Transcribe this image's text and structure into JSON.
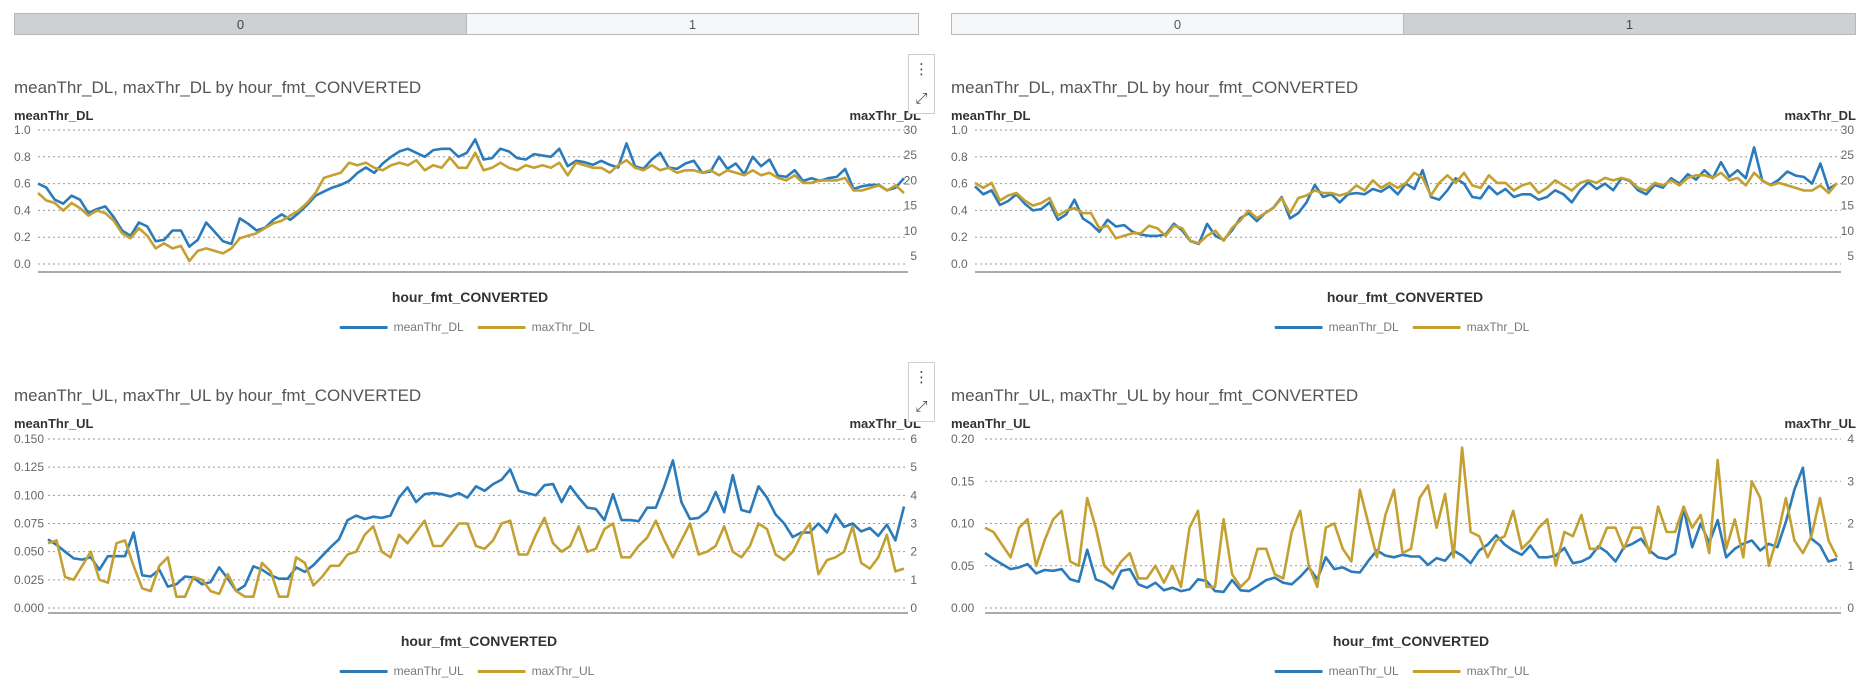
{
  "colors": {
    "mean": "#2b7bba",
    "max": "#c4a032"
  },
  "icons": {
    "menu": "more-vertical-icon",
    "expand": "expand-icon"
  },
  "panels": [
    {
      "tabs": [
        {
          "label": "0",
          "active": true
        },
        {
          "label": "1",
          "active": false
        }
      ]
    },
    {
      "tabs": [
        {
          "label": "0",
          "active": false
        },
        {
          "label": "1",
          "active": true
        }
      ]
    }
  ],
  "chart_data": [
    {
      "type": "line",
      "title": "meanThr_DL, maxThr_DL by hour_fmt_CONVERTED",
      "xlabel": "hour_fmt_CONVERTED",
      "ylabel": "meanThr_DL",
      "y2label": "maxThr_DL",
      "ylim": [
        0,
        1.0
      ],
      "yticks": [
        0.0,
        0.2,
        0.4,
        0.6,
        0.8,
        1.0
      ],
      "ytick_labels": [
        "0.0",
        "0.2",
        "0.4",
        "0.6",
        "0.8",
        "1.0"
      ],
      "y2lim": [
        3.4,
        30
      ],
      "y2ticks": [
        5,
        10,
        15,
        20,
        25,
        30
      ],
      "y2tick_labels": [
        "5",
        "10",
        "15",
        "20",
        "25",
        "30"
      ],
      "grid": true,
      "legend_position": "bottom",
      "series": [
        {
          "name": "meanThr_DL",
          "axis": "left",
          "values": [
            0.6,
            0.57,
            0.48,
            0.45,
            0.51,
            0.48,
            0.38,
            0.41,
            0.43,
            0.35,
            0.25,
            0.21,
            0.31,
            0.28,
            0.17,
            0.18,
            0.25,
            0.25,
            0.13,
            0.18,
            0.31,
            0.24,
            0.17,
            0.15,
            0.34,
            0.3,
            0.25,
            0.27,
            0.33,
            0.37,
            0.33,
            0.38,
            0.44,
            0.51,
            0.54,
            0.57,
            0.59,
            0.62,
            0.68,
            0.72,
            0.68,
            0.75,
            0.8,
            0.84,
            0.86,
            0.83,
            0.8,
            0.85,
            0.86,
            0.86,
            0.8,
            0.83,
            0.93,
            0.78,
            0.79,
            0.86,
            0.84,
            0.79,
            0.78,
            0.82,
            0.81,
            0.8,
            0.86,
            0.73,
            0.77,
            0.76,
            0.74,
            0.77,
            0.74,
            0.72,
            0.9,
            0.73,
            0.71,
            0.78,
            0.83,
            0.72,
            0.71,
            0.75,
            0.77,
            0.68,
            0.69,
            0.8,
            0.71,
            0.75,
            0.67,
            0.8,
            0.73,
            0.78,
            0.66,
            0.65,
            0.7,
            0.62,
            0.64,
            0.62,
            0.64,
            0.65,
            0.71,
            0.56,
            0.58,
            0.59,
            0.59,
            0.55,
            0.57,
            0.64
          ]
        },
        {
          "name": "maxThr_DL",
          "axis": "right",
          "values": [
            17.5,
            16.0,
            15.5,
            14.0,
            15.5,
            14.5,
            13.0,
            14.0,
            13.5,
            12.0,
            9.5,
            8.5,
            10.5,
            9.0,
            6.5,
            7.5,
            6.5,
            7.0,
            4.0,
            6.0,
            6.5,
            6.0,
            5.5,
            6.5,
            8.5,
            9.0,
            9.5,
            10.5,
            11.5,
            12.0,
            13.0,
            14.0,
            15.5,
            17.5,
            20.5,
            21.0,
            21.5,
            23.5,
            23.0,
            23.5,
            22.5,
            22.0,
            23.0,
            23.5,
            23.0,
            24.0,
            22.0,
            23.0,
            22.5,
            24.5,
            22.5,
            22.5,
            25.5,
            22.0,
            22.5,
            23.5,
            22.5,
            22.0,
            23.0,
            22.5,
            23.0,
            22.5,
            23.5,
            21.0,
            23.5,
            23.0,
            22.5,
            22.5,
            21.5,
            23.0,
            24.0,
            22.5,
            22.0,
            23.0,
            22.0,
            22.5,
            21.5,
            22.0,
            22.0,
            21.5,
            22.0,
            21.0,
            22.0,
            21.5,
            21.0,
            22.0,
            21.0,
            21.5,
            20.5,
            20.0,
            21.0,
            19.5,
            19.5,
            20.0,
            20.0,
            20.0,
            20.5,
            18.0,
            18.0,
            18.5,
            19.0,
            18.0,
            19.0,
            17.5
          ]
        }
      ]
    },
    {
      "type": "line",
      "title": "meanThr_DL, maxThr_DL by hour_fmt_CONVERTED",
      "xlabel": "hour_fmt_CONVERTED",
      "ylabel": "meanThr_DL",
      "y2label": "maxThr_DL",
      "ylim": [
        0,
        1.0
      ],
      "yticks": [
        0.0,
        0.2,
        0.4,
        0.6,
        0.8,
        1.0
      ],
      "ytick_labels": [
        "0.0",
        "0.2",
        "0.4",
        "0.6",
        "0.8",
        "1.0"
      ],
      "y2lim": [
        3.4,
        30
      ],
      "y2ticks": [
        5,
        10,
        15,
        20,
        25,
        30
      ],
      "y2tick_labels": [
        "5",
        "10",
        "15",
        "20",
        "25",
        "30"
      ],
      "grid": true,
      "legend_position": "bottom",
      "series": [
        {
          "name": "meanThr_DL",
          "axis": "left",
          "values": [
            0.58,
            0.52,
            0.55,
            0.44,
            0.47,
            0.52,
            0.45,
            0.4,
            0.41,
            0.46,
            0.33,
            0.37,
            0.48,
            0.34,
            0.3,
            0.24,
            0.33,
            0.28,
            0.29,
            0.24,
            0.22,
            0.21,
            0.21,
            0.22,
            0.3,
            0.25,
            0.17,
            0.15,
            0.3,
            0.21,
            0.18,
            0.25,
            0.34,
            0.38,
            0.32,
            0.38,
            0.42,
            0.5,
            0.34,
            0.38,
            0.46,
            0.59,
            0.5,
            0.52,
            0.46,
            0.52,
            0.53,
            0.52,
            0.56,
            0.54,
            0.58,
            0.52,
            0.6,
            0.56,
            0.7,
            0.5,
            0.48,
            0.55,
            0.64,
            0.6,
            0.5,
            0.49,
            0.58,
            0.52,
            0.56,
            0.5,
            0.52,
            0.52,
            0.48,
            0.5,
            0.55,
            0.52,
            0.46,
            0.55,
            0.61,
            0.56,
            0.6,
            0.55,
            0.64,
            0.62,
            0.55,
            0.52,
            0.59,
            0.57,
            0.64,
            0.6,
            0.67,
            0.63,
            0.7,
            0.64,
            0.76,
            0.65,
            0.7,
            0.64,
            0.87,
            0.62,
            0.59,
            0.63,
            0.69,
            0.66,
            0.65,
            0.6,
            0.75,
            0.56,
            0.6
          ]
        },
        {
          "name": "maxThr_DL",
          "axis": "right",
          "values": [
            19.5,
            18.5,
            19.5,
            16.0,
            17.0,
            17.5,
            16.0,
            15.0,
            15.5,
            16.5,
            13.0,
            14.0,
            14.5,
            13.5,
            13.5,
            10.5,
            11.0,
            8.5,
            9.0,
            9.5,
            9.5,
            11.0,
            10.5,
            9.0,
            11.0,
            10.5,
            8.0,
            7.5,
            9.0,
            10.0,
            8.0,
            10.5,
            12.0,
            14.0,
            12.5,
            13.5,
            14.5,
            16.5,
            13.5,
            16.5,
            17.0,
            18.0,
            17.5,
            17.5,
            17.0,
            17.5,
            19.0,
            18.0,
            20.0,
            18.5,
            19.5,
            18.5,
            19.5,
            21.5,
            20.5,
            17.0,
            19.5,
            21.0,
            19.5,
            21.5,
            19.0,
            18.5,
            21.0,
            19.5,
            19.5,
            18.0,
            19.0,
            19.5,
            17.5,
            18.5,
            20.0,
            19.0,
            18.0,
            19.5,
            20.0,
            19.5,
            20.5,
            20.0,
            20.5,
            20.0,
            18.5,
            18.0,
            19.5,
            19.0,
            20.0,
            19.0,
            20.5,
            21.0,
            21.0,
            20.5,
            21.5,
            20.0,
            20.5,
            19.0,
            21.5,
            20.0,
            19.0,
            19.5,
            19.0,
            18.5,
            18.0,
            18.0,
            19.0,
            17.5,
            19.5
          ]
        }
      ]
    },
    {
      "type": "line",
      "title": "meanThr_UL, maxThr_UL by hour_fmt_CONVERTED",
      "xlabel": "hour_fmt_CONVERTED",
      "ylabel": "meanThr_UL",
      "y2label": "maxThr_UL",
      "ylim": [
        0,
        0.15
      ],
      "yticks": [
        0,
        0.025,
        0.05,
        0.075,
        0.1,
        0.125,
        0.15
      ],
      "ytick_labels": [
        "0.000",
        "0.025",
        "0.050",
        "0.075",
        "0.100",
        "0.125",
        "0.150"
      ],
      "y2lim": [
        0,
        6
      ],
      "y2ticks": [
        0,
        1,
        2,
        3,
        4,
        5,
        6
      ],
      "y2tick_labels": [
        "0",
        "1",
        "2",
        "3",
        "4",
        "5",
        "6"
      ],
      "grid": true,
      "legend_position": "bottom",
      "series": [
        {
          "name": "meanThr_UL",
          "axis": "left",
          "values": [
            0.061,
            0.056,
            0.05,
            0.044,
            0.043,
            0.045,
            0.034,
            0.046,
            0.046,
            0.046,
            0.067,
            0.029,
            0.028,
            0.034,
            0.019,
            0.021,
            0.028,
            0.027,
            0.021,
            0.023,
            0.036,
            0.026,
            0.015,
            0.02,
            0.037,
            0.034,
            0.029,
            0.026,
            0.026,
            0.036,
            0.032,
            0.038,
            0.046,
            0.054,
            0.061,
            0.078,
            0.082,
            0.079,
            0.081,
            0.08,
            0.082,
            0.098,
            0.107,
            0.094,
            0.101,
            0.102,
            0.101,
            0.099,
            0.102,
            0.098,
            0.108,
            0.104,
            0.11,
            0.114,
            0.123,
            0.104,
            0.102,
            0.1,
            0.109,
            0.11,
            0.094,
            0.108,
            0.098,
            0.089,
            0.088,
            0.078,
            0.101,
            0.078,
            0.078,
            0.077,
            0.089,
            0.089,
            0.108,
            0.131,
            0.094,
            0.079,
            0.08,
            0.086,
            0.103,
            0.085,
            0.118,
            0.087,
            0.085,
            0.108,
            0.098,
            0.083,
            0.075,
            0.063,
            0.067,
            0.067,
            0.075,
            0.067,
            0.083,
            0.072,
            0.075,
            0.068,
            0.071,
            0.064,
            0.074,
            0.06,
            0.09
          ]
        },
        {
          "name": "maxThr_UL",
          "axis": "right",
          "values": [
            2.3,
            2.4,
            1.1,
            1.0,
            1.5,
            2.0,
            1.0,
            0.9,
            2.3,
            2.4,
            1.5,
            0.7,
            0.6,
            1.5,
            1.8,
            0.4,
            0.4,
            1.1,
            1.0,
            0.6,
            0.5,
            1.2,
            0.6,
            0.4,
            0.4,
            1.6,
            1.3,
            0.4,
            0.4,
            1.8,
            1.6,
            0.8,
            1.1,
            1.5,
            1.5,
            1.9,
            2.0,
            2.6,
            2.9,
            2.0,
            1.8,
            2.6,
            2.3,
            2.7,
            3.1,
            2.2,
            2.2,
            2.6,
            3.0,
            3.0,
            2.2,
            2.1,
            2.4,
            3.0,
            3.1,
            1.9,
            1.9,
            2.6,
            3.2,
            2.3,
            2.0,
            2.2,
            2.9,
            2.0,
            2.1,
            2.8,
            3.0,
            1.8,
            1.8,
            2.2,
            2.5,
            3.1,
            2.4,
            1.8,
            2.4,
            3.0,
            1.9,
            2.0,
            2.2,
            2.9,
            2.0,
            1.8,
            2.2,
            3.0,
            2.8,
            1.9,
            1.7,
            2.0,
            2.6,
            3.0,
            1.2,
            1.7,
            1.8,
            2.0,
            2.9,
            1.6,
            1.4,
            1.8,
            2.6,
            1.3,
            1.4
          ]
        }
      ]
    },
    {
      "type": "line",
      "title": "meanThr_UL, maxThr_UL by hour_fmt_CONVERTED",
      "xlabel": "hour_fmt_CONVERTED",
      "ylabel": "meanThr_UL",
      "y2label": "maxThr_UL",
      "ylim": [
        0,
        0.2
      ],
      "yticks": [
        0,
        0.05,
        0.1,
        0.15,
        0.2
      ],
      "ytick_labels": [
        "0.00",
        "0.05",
        "0.10",
        "0.15",
        "0.20"
      ],
      "y2lim": [
        0,
        4
      ],
      "y2ticks": [
        0,
        1,
        2,
        3,
        4
      ],
      "y2tick_labels": [
        "0",
        "1",
        "2",
        "3",
        "4"
      ],
      "grid": true,
      "legend_position": "bottom",
      "series": [
        {
          "name": "meanThr_UL",
          "axis": "left",
          "values": [
            0.065,
            0.058,
            0.052,
            0.046,
            0.048,
            0.052,
            0.041,
            0.045,
            0.044,
            0.046,
            0.034,
            0.031,
            0.069,
            0.034,
            0.03,
            0.023,
            0.044,
            0.046,
            0.028,
            0.024,
            0.03,
            0.021,
            0.024,
            0.02,
            0.022,
            0.034,
            0.032,
            0.02,
            0.019,
            0.033,
            0.021,
            0.02,
            0.026,
            0.033,
            0.036,
            0.03,
            0.028,
            0.037,
            0.048,
            0.034,
            0.06,
            0.046,
            0.048,
            0.043,
            0.042,
            0.056,
            0.068,
            0.062,
            0.06,
            0.063,
            0.061,
            0.061,
            0.051,
            0.059,
            0.056,
            0.068,
            0.062,
            0.053,
            0.068,
            0.075,
            0.086,
            0.075,
            0.068,
            0.063,
            0.074,
            0.06,
            0.06,
            0.062,
            0.071,
            0.053,
            0.055,
            0.06,
            0.073,
            0.066,
            0.055,
            0.072,
            0.076,
            0.082,
            0.068,
            0.06,
            0.058,
            0.064,
            0.118,
            0.072,
            0.1,
            0.077,
            0.104,
            0.06,
            0.07,
            0.076,
            0.08,
            0.068,
            0.076,
            0.072,
            0.102,
            0.14,
            0.166,
            0.082,
            0.074,
            0.055,
            0.058
          ]
        },
        {
          "name": "maxThr_UL",
          "axis": "right",
          "values": [
            1.9,
            1.8,
            1.5,
            1.2,
            1.9,
            2.1,
            1.0,
            1.6,
            2.1,
            2.3,
            1.1,
            1.0,
            2.6,
            1.9,
            1.0,
            0.8,
            1.1,
            1.3,
            0.7,
            0.7,
            1.0,
            0.6,
            1.0,
            0.5,
            1.9,
            2.3,
            0.5,
            0.5,
            2.1,
            0.8,
            0.5,
            0.7,
            1.4,
            1.4,
            0.8,
            0.7,
            1.8,
            2.3,
            1.0,
            0.5,
            1.9,
            2.0,
            1.4,
            1.1,
            2.8,
            2.0,
            1.2,
            2.2,
            2.8,
            1.3,
            1.4,
            2.6,
            2.9,
            1.9,
            2.7,
            1.2,
            3.8,
            1.8,
            1.7,
            1.2,
            1.6,
            1.7,
            2.3,
            1.4,
            1.6,
            1.9,
            2.1,
            1.0,
            1.8,
            1.7,
            2.2,
            1.4,
            1.4,
            1.9,
            1.9,
            1.4,
            1.9,
            1.9,
            1.3,
            2.4,
            1.8,
            1.8,
            2.4,
            1.9,
            2.2,
            1.3,
            3.5,
            1.4,
            2.1,
            1.2,
            3.0,
            2.6,
            1.0,
            1.7,
            2.6,
            1.6,
            1.3,
            1.7,
            2.6,
            1.6,
            1.2
          ]
        }
      ]
    }
  ]
}
